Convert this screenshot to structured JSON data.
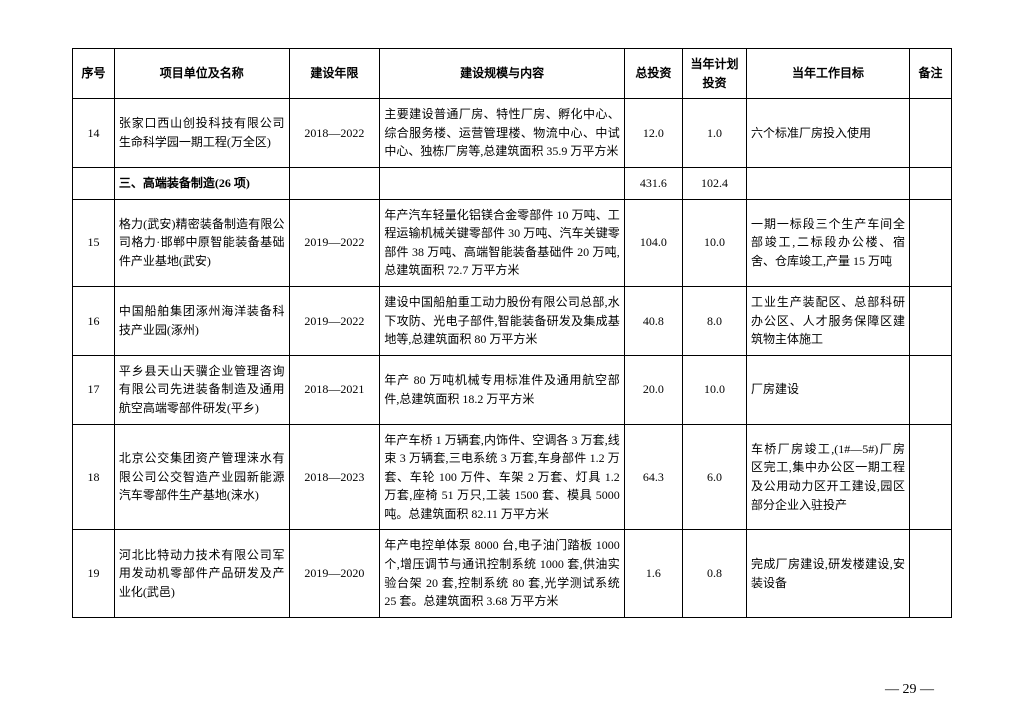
{
  "headers": {
    "seq": "序号",
    "name": "项目单位及名称",
    "year": "建设年限",
    "scope": "建设规模与内容",
    "total_inv": "总投资",
    "plan_inv": "当年计划投资",
    "goal": "当年工作目标",
    "note": "备注"
  },
  "rows": [
    {
      "seq": "14",
      "name": "张家口西山创投科技有限公司生命科学园一期工程(万全区)",
      "year": "2018—2022",
      "scope": "主要建设普通厂房、特性厂房、孵化中心、综合服务楼、运营管理楼、物流中心、中试中心、独栋厂房等,总建筑面积 35.9 万平方米",
      "total_inv": "12.0",
      "plan_inv": "1.0",
      "goal": "六个标准厂房投入使用",
      "note": ""
    },
    {
      "section": true,
      "name": "三、高端装备制造(26 项)",
      "total_inv": "431.6",
      "plan_inv": "102.4"
    },
    {
      "seq": "15",
      "name": "格力(武安)精密装备制造有限公司格力·邯郸中原智能装备基础件产业基地(武安)",
      "year": "2019—2022",
      "scope": "年产汽车轻量化铝镁合金零部件 10 万吨、工程运输机械关键零部件 30 万吨、汽车关键零部件 38 万吨、高端智能装备基础件 20 万吨,总建筑面积 72.7 万平方米",
      "total_inv": "104.0",
      "plan_inv": "10.0",
      "goal": "一期一标段三个生产车间全部竣工,二标段办公楼、宿舍、仓库竣工,产量 15 万吨",
      "note": ""
    },
    {
      "seq": "16",
      "name": "中国船舶集团涿州海洋装备科技产业园(涿州)",
      "year": "2019—2022",
      "scope": "建设中国船舶重工动力股份有限公司总部,水下攻防、光电子部件,智能装备研发及集成基地等,总建筑面积 80 万平方米",
      "total_inv": "40.8",
      "plan_inv": "8.0",
      "goal": "工业生产装配区、总部科研办公区、人才服务保障区建筑物主体施工",
      "note": ""
    },
    {
      "seq": "17",
      "name": "平乡县天山天骥企业管理咨询有限公司先进装备制造及通用航空高端零部件研发(平乡)",
      "year": "2018—2021",
      "scope": "年产 80 万吨机械专用标准件及通用航空部件,总建筑面积 18.2 万平方米",
      "total_inv": "20.0",
      "plan_inv": "10.0",
      "goal": "厂房建设",
      "note": ""
    },
    {
      "seq": "18",
      "name": "北京公交集团资产管理涞水有限公司公交智造产业园新能源汽车零部件生产基地(涞水)",
      "year": "2018—2023",
      "scope": "年产车桥 1 万辆套,内饰件、空调各 3 万套,线束 3 万辆套,三电系统 3 万套,车身部件 1.2 万套、车轮 100 万件、车架 2 万套、灯具 1.2 万套,座椅 51 万只,工装 1500 套、模具 5000 吨。总建筑面积 82.11 万平方米",
      "total_inv": "64.3",
      "plan_inv": "6.0",
      "goal": "车桥厂房竣工,(1#—5#)厂房区完工,集中办公区一期工程及公用动力区开工建设,园区部分企业入驻投产",
      "note": ""
    },
    {
      "seq": "19",
      "name": "河北比特动力技术有限公司军用发动机零部件产品研发及产业化(武邑)",
      "year": "2019—2020",
      "scope": "年产电控单体泵 8000 台,电子油门踏板 1000 个,增压调节与通讯控制系统 1000 套,供油实验台架 20 套,控制系统 80 套,光学测试系统 25 套。总建筑面积 3.68 万平方米",
      "total_inv": "1.6",
      "plan_inv": "0.8",
      "goal": "完成厂房建设,研发楼建设,安装设备",
      "note": ""
    }
  ],
  "page_number": "— 29 —"
}
